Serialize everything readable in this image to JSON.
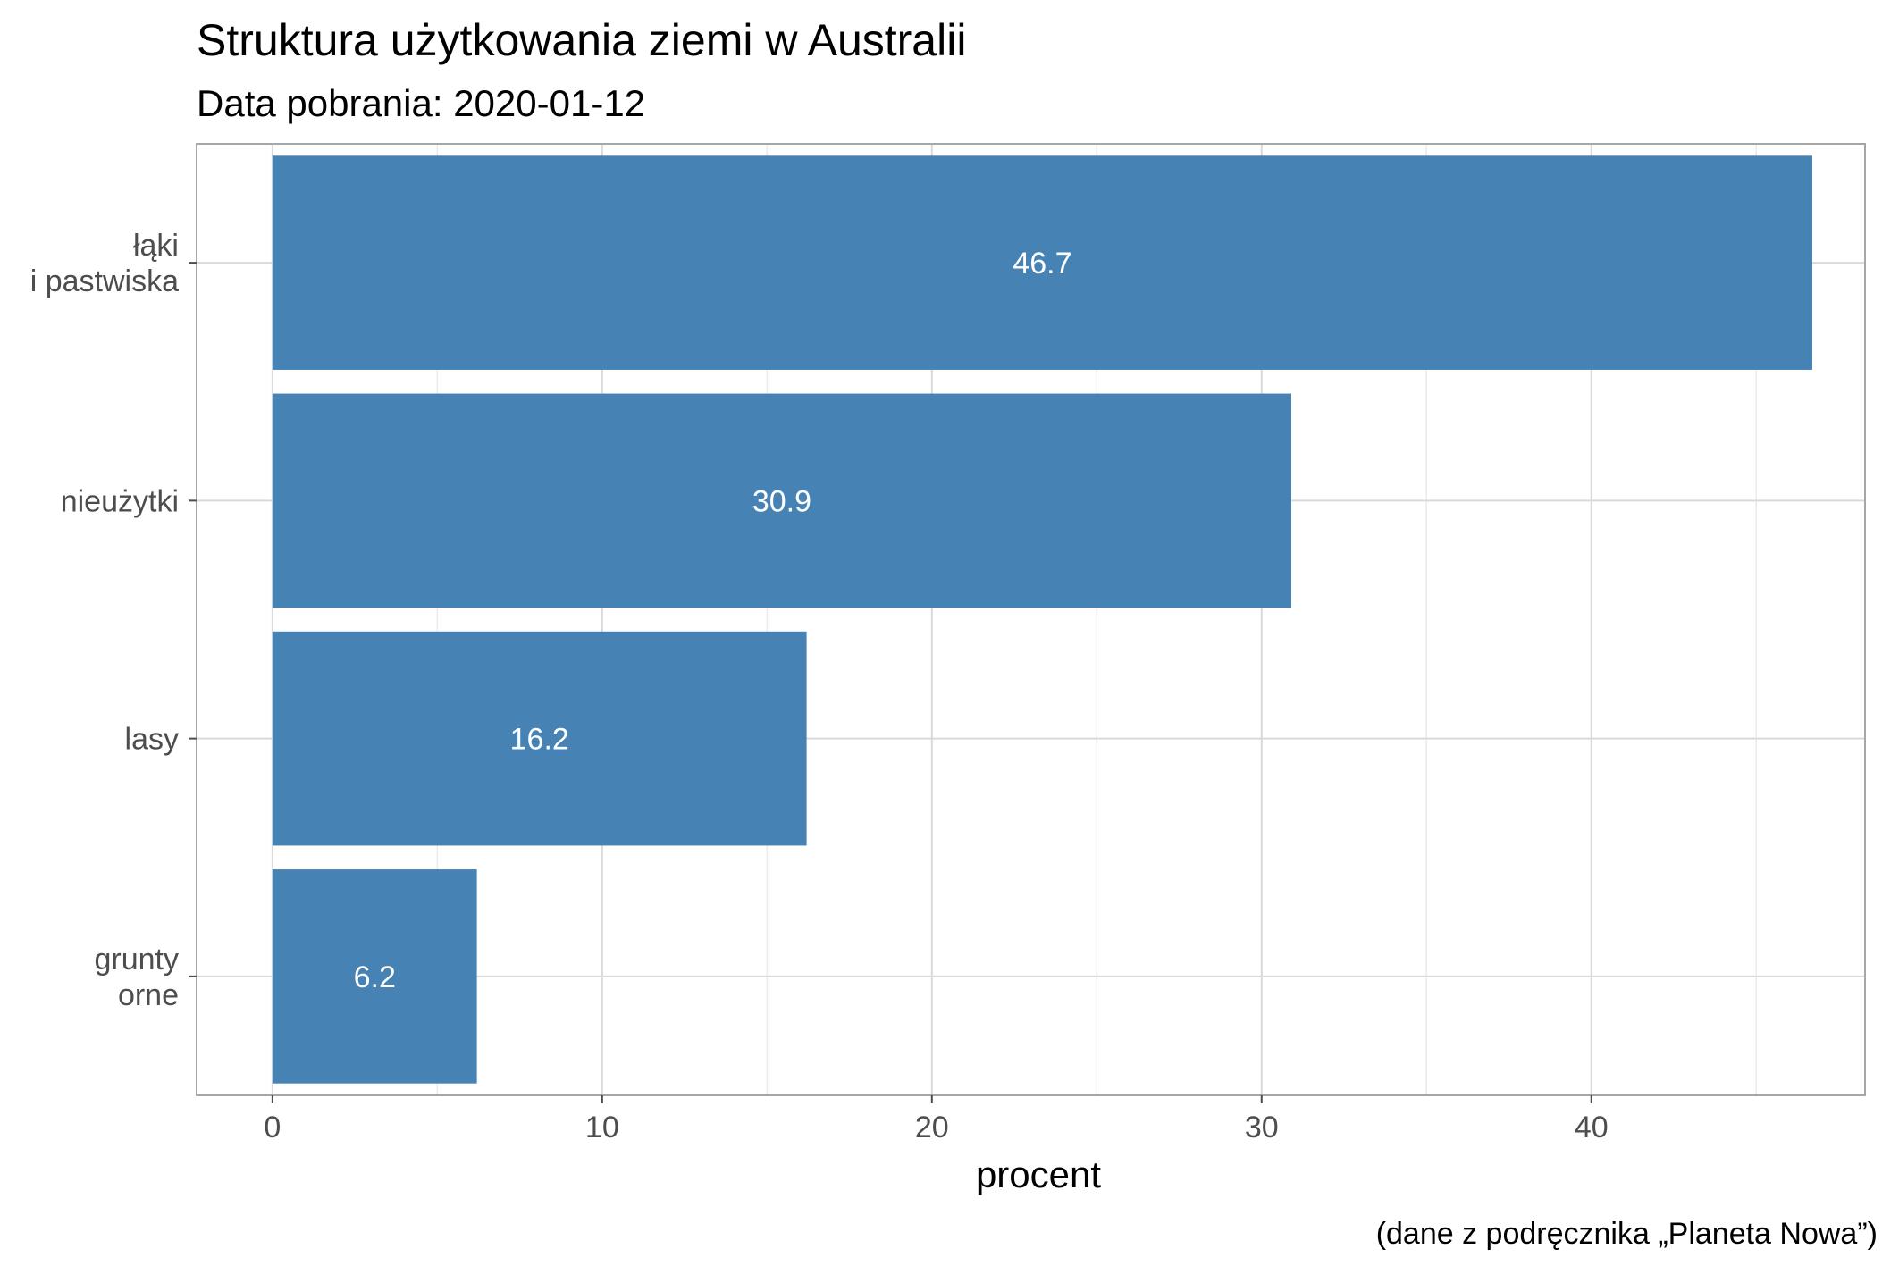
{
  "chart_data": {
    "type": "bar",
    "orientation": "horizontal",
    "title": "Struktura użytkowania ziemi w Australii",
    "subtitle": "Data pobrania: 2020-01-12",
    "xlabel": "procent",
    "ylabel": "",
    "caption": "(dane z podręcznika „Planeta Nowa”)",
    "categories": [
      [
        "łąki",
        "i pastwiska"
      ],
      [
        "nieużytki"
      ],
      [
        "lasy"
      ],
      [
        "grunty",
        "orne"
      ]
    ],
    "values": [
      46.7,
      30.9,
      16.2,
      6.2
    ],
    "data_labels": [
      "46.7",
      "30.9",
      "16.2",
      "6.2"
    ],
    "xticks": [
      0,
      10,
      20,
      30,
      40
    ],
    "xtick_labels": [
      "0",
      "10",
      "20",
      "30",
      "40"
    ],
    "xlim": [
      -2.3,
      48.3
    ],
    "grid": true,
    "colors": {
      "bar": "#4682B4",
      "grid_major": "#d9d9d9",
      "grid_minor": "#ebebeb",
      "border": "#a6a6a6"
    }
  }
}
